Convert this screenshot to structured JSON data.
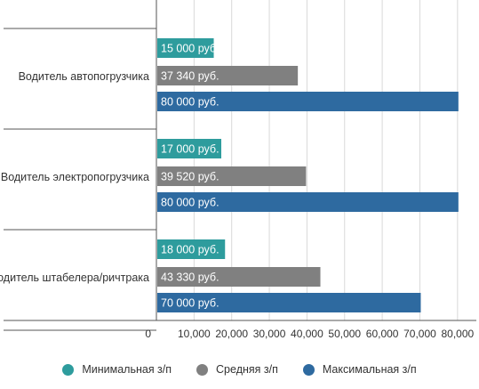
{
  "chart_data": {
    "type": "bar",
    "orientation": "horizontal",
    "categories": [
      "Водитель автопогрузчика",
      "Водитель электропогрузчика",
      "Водитель штабелера/ричтрака"
    ],
    "series": [
      {
        "name": "Минимальная з/п",
        "color": "#2e9c9d",
        "values": [
          15000,
          17000,
          18000
        ],
        "labels": [
          "15 000 руб.",
          "17 000 руб.",
          "18 000 руб."
        ]
      },
      {
        "name": "Средняя з/п",
        "color": "#808080",
        "values": [
          37340,
          39520,
          43330
        ],
        "labels": [
          "37 340 руб.",
          "39 520 руб.",
          "43 330 руб."
        ]
      },
      {
        "name": "Максимальная з/п",
        "color": "#2e6aa0",
        "values": [
          80000,
          80000,
          70000
        ],
        "labels": [
          "80 000 руб.",
          "80 000 руб.",
          "70 000 руб."
        ]
      }
    ],
    "xlim": [
      0,
      85000
    ],
    "xticks": [
      "0",
      "10,000",
      "20,000",
      "30,000",
      "40,000",
      "50,000",
      "60,000",
      "70,000",
      "80,000"
    ],
    "grid": true,
    "legend_position": "bottom"
  }
}
